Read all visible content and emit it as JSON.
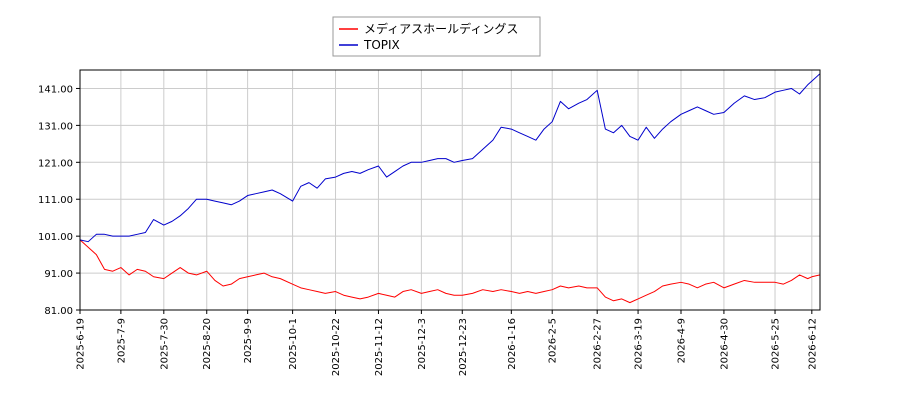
{
  "chart_data": {
    "type": "line",
    "title": "",
    "xlabel": "",
    "ylabel": "",
    "ylim": [
      81.0,
      146.0
    ],
    "yticks": [
      "81.00",
      "91.00",
      "101.00",
      "111.00",
      "121.00",
      "131.00",
      "141.00"
    ],
    "xticks": [
      "2025-6-19",
      "2025-7-9",
      "2025-7-30",
      "2025-8-20",
      "2025-9-9",
      "2025-10-1",
      "2025-10-22",
      "2025-11-12",
      "2025-12-3",
      "2025-12-23",
      "2026-1-16",
      "2026-2-5",
      "2026-2-27",
      "2026-3-19",
      "2026-4-9",
      "2026-4-30",
      "2026-5-25",
      "2026-6-12"
    ],
    "grid": true,
    "legend_position": "top-center",
    "series": [
      {
        "name": "メディアスホールディングス",
        "color": "#ff0000",
        "x": [
          "2025-6-19",
          "2025-6-23",
          "2025-6-27",
          "2025-7-1",
          "2025-7-5",
          "2025-7-9",
          "2025-7-13",
          "2025-7-17",
          "2025-7-21",
          "2025-7-25",
          "2025-7-30",
          "2025-8-3",
          "2025-8-7",
          "2025-8-11",
          "2025-8-15",
          "2025-8-20",
          "2025-8-24",
          "2025-8-28",
          "2025-9-1",
          "2025-9-5",
          "2025-9-9",
          "2025-9-13",
          "2025-9-17",
          "2025-9-21",
          "2025-9-25",
          "2025-10-1",
          "2025-10-5",
          "2025-10-9",
          "2025-10-13",
          "2025-10-17",
          "2025-10-22",
          "2025-10-26",
          "2025-10-30",
          "2025-11-3",
          "2025-11-7",
          "2025-11-12",
          "2025-11-16",
          "2025-11-20",
          "2025-11-24",
          "2025-11-28",
          "2025-12-3",
          "2025-12-7",
          "2025-12-11",
          "2025-12-15",
          "2025-12-19",
          "2025-12-23",
          "2025-12-28",
          "2026-1-2",
          "2026-1-7",
          "2026-1-11",
          "2026-1-16",
          "2026-1-20",
          "2026-1-24",
          "2026-1-28",
          "2026-2-1",
          "2026-2-5",
          "2026-2-9",
          "2026-2-13",
          "2026-2-18",
          "2026-2-22",
          "2026-2-27",
          "2026-3-3",
          "2026-3-7",
          "2026-3-11",
          "2026-3-15",
          "2026-3-19",
          "2026-3-23",
          "2026-3-27",
          "2026-3-31",
          "2026-4-4",
          "2026-4-9",
          "2026-4-13",
          "2026-4-17",
          "2026-4-21",
          "2026-4-25",
          "2026-4-30",
          "2026-5-5",
          "2026-5-10",
          "2026-5-15",
          "2026-5-20",
          "2026-5-25",
          "2026-5-29",
          "2026-6-2",
          "2026-6-6",
          "2026-6-10",
          "2026-6-12",
          "2026-6-16"
        ],
        "values": [
          100.0,
          98.0,
          96.0,
          92.0,
          91.5,
          92.5,
          90.5,
          92.0,
          91.5,
          90.0,
          89.5,
          91.0,
          92.5,
          91.0,
          90.5,
          91.5,
          89.0,
          87.5,
          88.0,
          89.5,
          90.0,
          90.5,
          91.0,
          90.0,
          89.5,
          88.0,
          87.0,
          86.5,
          86.0,
          85.5,
          86.0,
          85.0,
          84.5,
          84.0,
          84.5,
          85.5,
          85.0,
          84.5,
          86.0,
          86.5,
          85.5,
          86.0,
          86.5,
          85.5,
          85.0,
          85.0,
          85.5,
          86.5,
          86.0,
          86.5,
          86.0,
          85.5,
          86.0,
          85.5,
          86.0,
          86.5,
          87.5,
          87.0,
          87.5,
          87.0,
          87.0,
          84.5,
          83.5,
          84.0,
          83.0,
          84.0,
          85.0,
          86.0,
          87.5,
          88.0,
          88.5,
          88.0,
          87.0,
          88.0,
          88.5,
          87.0,
          88.0,
          89.0,
          88.5,
          88.5,
          88.5,
          88.0,
          89.0,
          90.5,
          89.5,
          90.0,
          90.5
        ]
      },
      {
        "name": "TOPIX",
        "color": "#0000cc",
        "x": [
          "2025-6-19",
          "2025-6-23",
          "2025-6-27",
          "2025-7-1",
          "2025-7-5",
          "2025-7-9",
          "2025-7-13",
          "2025-7-17",
          "2025-7-21",
          "2025-7-25",
          "2025-7-30",
          "2025-8-3",
          "2025-8-7",
          "2025-8-11",
          "2025-8-15",
          "2025-8-20",
          "2025-8-24",
          "2025-8-28",
          "2025-9-1",
          "2025-9-5",
          "2025-9-9",
          "2025-9-13",
          "2025-9-17",
          "2025-9-21",
          "2025-9-25",
          "2025-10-1",
          "2025-10-5",
          "2025-10-9",
          "2025-10-13",
          "2025-10-17",
          "2025-10-22",
          "2025-10-26",
          "2025-10-30",
          "2025-11-3",
          "2025-11-7",
          "2025-11-12",
          "2025-11-16",
          "2025-11-20",
          "2025-11-24",
          "2025-11-28",
          "2025-12-3",
          "2025-12-7",
          "2025-12-11",
          "2025-12-15",
          "2025-12-19",
          "2025-12-23",
          "2025-12-28",
          "2026-1-2",
          "2026-1-7",
          "2026-1-11",
          "2026-1-16",
          "2026-1-20",
          "2026-1-24",
          "2026-1-28",
          "2026-2-1",
          "2026-2-5",
          "2026-2-9",
          "2026-2-13",
          "2026-2-18",
          "2026-2-22",
          "2026-2-27",
          "2026-3-3",
          "2026-3-7",
          "2026-3-11",
          "2026-3-15",
          "2026-3-19",
          "2026-3-23",
          "2026-3-27",
          "2026-3-31",
          "2026-4-4",
          "2026-4-9",
          "2026-4-13",
          "2026-4-17",
          "2026-4-21",
          "2026-4-25",
          "2026-4-30",
          "2026-5-5",
          "2026-5-10",
          "2026-5-15",
          "2026-5-20",
          "2026-5-25",
          "2026-5-29",
          "2026-6-2",
          "2026-6-6",
          "2026-6-10",
          "2026-6-12",
          "2026-6-16"
        ],
        "values": [
          100.0,
          99.5,
          101.5,
          101.5,
          101.0,
          101.0,
          101.0,
          101.5,
          102.0,
          105.5,
          104.0,
          105.0,
          106.5,
          108.5,
          111.0,
          111.0,
          110.5,
          110.0,
          109.5,
          110.5,
          112.0,
          112.5,
          113.0,
          113.5,
          112.5,
          110.5,
          114.5,
          115.5,
          114.0,
          116.5,
          117.0,
          118.0,
          118.5,
          118.0,
          119.0,
          120.0,
          117.0,
          118.5,
          120.0,
          121.0,
          121.0,
          121.5,
          122.0,
          122.0,
          121.0,
          121.5,
          122.0,
          124.5,
          127.0,
          130.5,
          130.0,
          129.0,
          128.0,
          127.0,
          130.0,
          132.0,
          137.5,
          135.5,
          137.0,
          138.0,
          140.5,
          130.0,
          129.0,
          131.0,
          128.0,
          127.0,
          130.5,
          127.5,
          130.0,
          132.0,
          134.0,
          135.0,
          136.0,
          135.0,
          134.0,
          134.5,
          137.0,
          139.0,
          138.0,
          138.5,
          140.0,
          140.5,
          141.0,
          139.5,
          142.0,
          143.0,
          145.0
        ]
      }
    ]
  }
}
